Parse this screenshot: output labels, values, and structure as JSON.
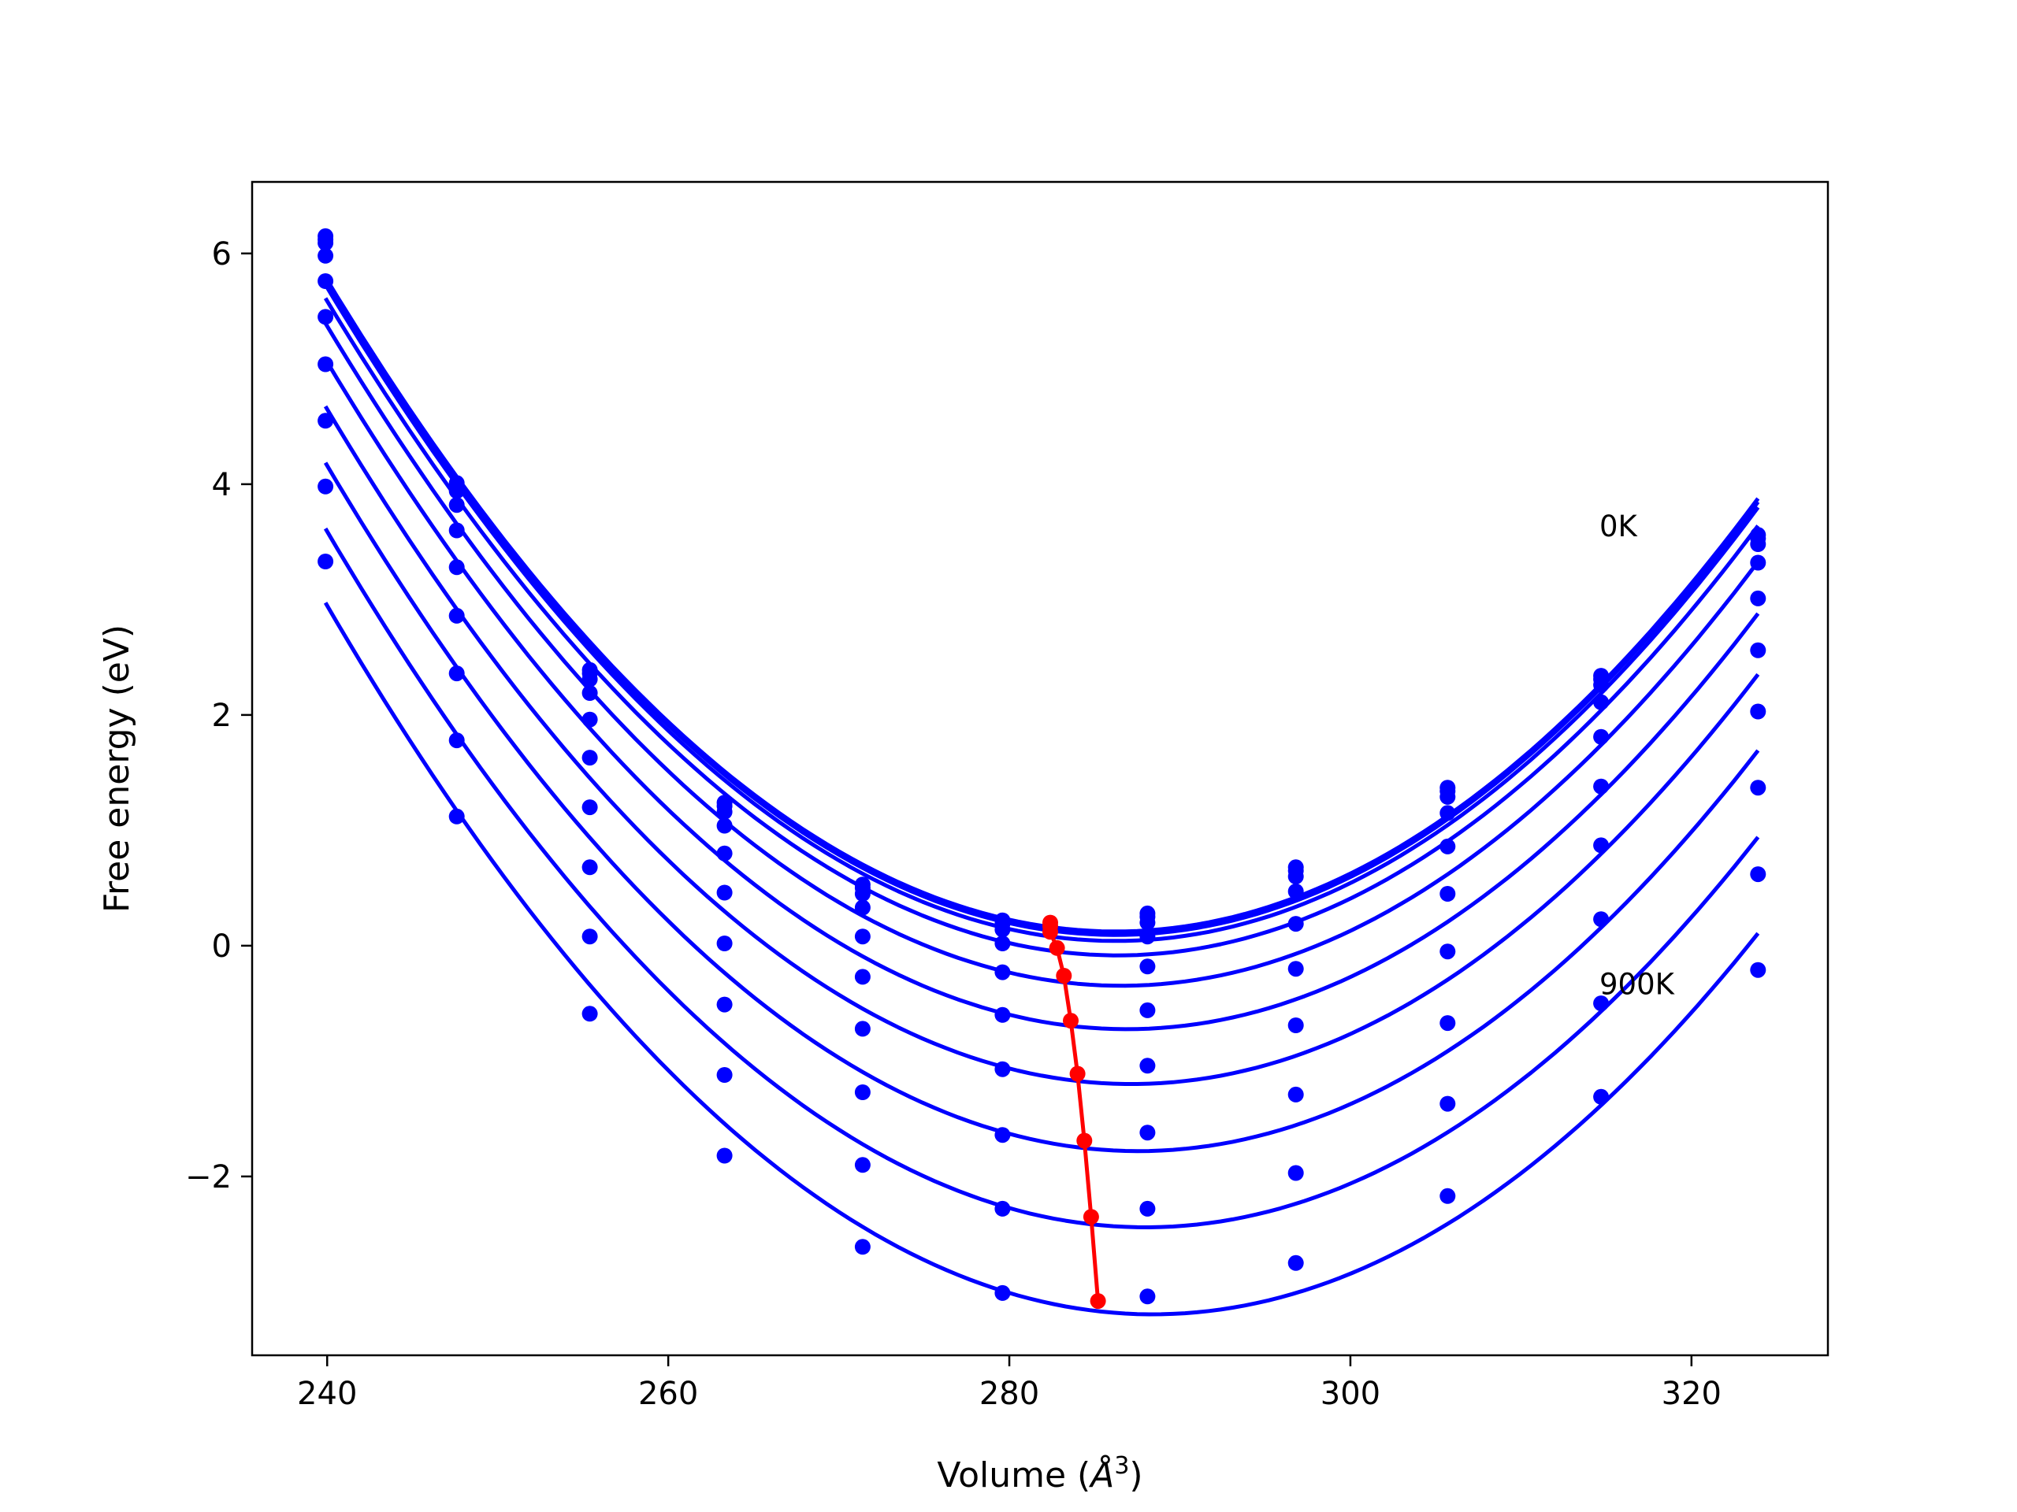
{
  "chart_data": {
    "type": "line",
    "xlabel": "Volume ($Å^3$)",
    "xlabel_parts": {
      "pre": "Volume (",
      "sym": "Å",
      "sup": "3",
      "post": ")"
    },
    "ylabel": "Free energy (eV)",
    "xlim": [
      235.6,
      328.0
    ],
    "ylim": [
      -3.55,
      6.62
    ],
    "xticks": [
      {
        "value": 240,
        "label": "240"
      },
      {
        "value": 260,
        "label": "260"
      },
      {
        "value": 280,
        "label": "280"
      },
      {
        "value": 300,
        "label": "300"
      },
      {
        "value": 320,
        "label": "320"
      }
    ],
    "yticks": [
      {
        "value": -2,
        "label": "−2"
      },
      {
        "value": 0,
        "label": "0"
      },
      {
        "value": 2,
        "label": "2"
      },
      {
        "value": 4,
        "label": "4"
      },
      {
        "value": 6,
        "label": "6"
      }
    ],
    "grid": false,
    "legend": "none",
    "annotations": [
      {
        "text": "0K",
        "x": 314.6,
        "y": 3.55
      },
      {
        "text": "900K",
        "x": 314.6,
        "y": -0.42
      }
    ],
    "colors": {
      "curves": "#0000ff",
      "points": "#0000ff",
      "minimum_path": "#ff0000"
    },
    "x": [
      239.9,
      247.6,
      255.4,
      263.3,
      271.4,
      279.6,
      288.1,
      296.8,
      305.7,
      314.7,
      323.9
    ],
    "series": [
      {
        "values": [
          6.15,
          4.01,
          2.39,
          1.24,
          0.53,
          0.22,
          0.28,
          0.68,
          1.37,
          2.34,
          3.56
        ],
        "min": {
          "x": 282.4,
          "y": 0.2
        }
      },
      {
        "values": [
          6.12,
          3.98,
          2.36,
          1.21,
          0.5,
          0.19,
          0.25,
          0.65,
          1.34,
          2.31,
          3.53
        ],
        "min": {
          "x": 282.4,
          "y": 0.17
        }
      },
      {
        "values": [
          6.09,
          3.94,
          2.31,
          1.16,
          0.45,
          0.14,
          0.2,
          0.6,
          1.29,
          2.26,
          3.48
        ],
        "min": {
          "x": 282.4,
          "y": 0.12
        }
      },
      {
        "values": [
          5.98,
          3.82,
          2.19,
          1.04,
          0.33,
          0.02,
          0.08,
          0.47,
          1.15,
          2.11,
          3.32
        ],
        "min": {
          "x": 282.8,
          "y": -0.02
        }
      },
      {
        "values": [
          5.76,
          3.6,
          1.96,
          0.8,
          0.08,
          -0.23,
          -0.18,
          0.19,
          0.86,
          1.81,
          3.01
        ],
        "min": {
          "x": 283.2,
          "y": -0.26
        }
      },
      {
        "values": [
          5.45,
          3.28,
          1.63,
          0.46,
          -0.27,
          -0.6,
          -0.56,
          -0.2,
          0.45,
          1.38,
          2.56
        ],
        "min": {
          "x": 283.6,
          "y": -0.65
        }
      },
      {
        "values": [
          5.04,
          2.86,
          1.2,
          0.02,
          -0.72,
          -1.07,
          -1.04,
          -0.69,
          -0.05,
          0.87,
          2.03
        ],
        "min": {
          "x": 284.0,
          "y": -1.11
        }
      },
      {
        "values": [
          4.55,
          2.36,
          0.68,
          -0.51,
          -1.27,
          -1.64,
          -1.62,
          -1.29,
          -0.67,
          0.23,
          1.37
        ],
        "min": {
          "x": 284.4,
          "y": -1.69
        }
      },
      {
        "values": [
          3.98,
          1.78,
          0.08,
          -1.12,
          -1.9,
          -2.28,
          -2.28,
          -1.97,
          -1.37,
          -0.5,
          0.62
        ],
        "min": {
          "x": 284.8,
          "y": -2.35
        }
      },
      {
        "values": [
          3.33,
          1.12,
          -0.59,
          -1.82,
          -2.61,
          -3.01,
          -3.04,
          -2.75,
          -2.17,
          -1.31,
          -0.21
        ],
        "min": {
          "x": 285.2,
          "y": -3.08
        }
      }
    ]
  }
}
